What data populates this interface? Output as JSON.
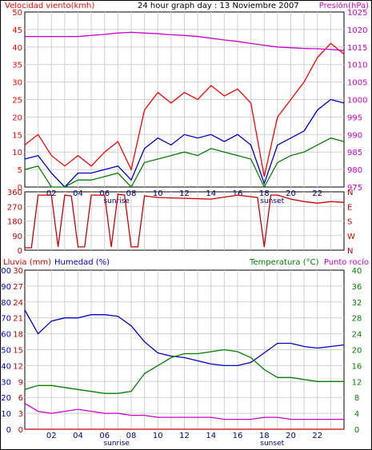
{
  "header": {
    "wind_label": "Velocidad viento(kmh)",
    "title": "24 hour graph day : 13 Noviembre 2007",
    "pressure_label": "Presión(hPa)"
  },
  "bottom_header": {
    "rain_label": "Lluvia (mm)",
    "humidity_label": "Humedad (%)",
    "temp_label": "Temperatura (°C)",
    "dew_label": "Punto rocío"
  },
  "x_tick_labels": [
    "02",
    "04",
    "06",
    "08",
    "10",
    "12",
    "14",
    "16",
    "18",
    "20",
    "22"
  ],
  "sun_labels": {
    "sunrise": "sunrise",
    "sunset": "sunset"
  },
  "colors": {
    "wind": "#ff0000",
    "wind_avg": "#0000cc",
    "wind_min": "#008000",
    "pressure": "#cc00cc",
    "direction": "#cc0000",
    "humidity": "#0000cc",
    "temperature": "#008000",
    "dewpoint": "#cc00cc",
    "rain": "#cc0000",
    "grid": "#d0d0d0"
  },
  "chart_data": [
    {
      "type": "line",
      "title": "24 hour graph day : 13 Noviembre 2007",
      "x_hours": [
        0,
        1,
        2,
        3,
        4,
        5,
        6,
        7,
        8,
        9,
        10,
        11,
        12,
        13,
        14,
        15,
        16,
        17,
        18,
        19,
        20,
        21,
        22,
        23,
        24
      ],
      "xlim": [
        0,
        24
      ],
      "left_axis": {
        "label": "Velocidad viento(kmh)",
        "ylim": [
          0,
          50
        ],
        "ticks": [
          0,
          5,
          10,
          15,
          20,
          25,
          30,
          35,
          40,
          45,
          50
        ]
      },
      "right_axis": {
        "label": "Presión(hPa)",
        "ylim": [
          975,
          1025
        ],
        "ticks": [
          975,
          980,
          985,
          990,
          995,
          1000,
          1005,
          1010,
          1015,
          1020,
          1025
        ]
      },
      "series": [
        {
          "axis": "left",
          "values": [
            12,
            15,
            9,
            6,
            9,
            6,
            10,
            13,
            5,
            22,
            27,
            24,
            27,
            25,
            29,
            26,
            28,
            24,
            3,
            20,
            25,
            30,
            37,
            41,
            38
          ]
        },
        {
          "axis": "left",
          "values": [
            8,
            9,
            4,
            0,
            4,
            4,
            5,
            6,
            2,
            11,
            14,
            12,
            15,
            14,
            15,
            13,
            15,
            12,
            1,
            12,
            14,
            16,
            22,
            25,
            24
          ]
        },
        {
          "axis": "left",
          "values": [
            5,
            6,
            0,
            0,
            2,
            2,
            3,
            4,
            0,
            7,
            8,
            9,
            10,
            9,
            11,
            10,
            9,
            8,
            0,
            7,
            9,
            10,
            12,
            14,
            13
          ]
        },
        {
          "axis": "right",
          "values": [
            1018,
            1018,
            1018,
            1018,
            1018,
            1018.3,
            1018.6,
            1019,
            1019.2,
            1019,
            1018.8,
            1018.5,
            1018.3,
            1018,
            1017.5,
            1017,
            1016.6,
            1016,
            1015.5,
            1015,
            1014.8,
            1014.6,
            1014.5,
            1014.3,
            1014
          ]
        }
      ]
    },
    {
      "type": "line",
      "x_hours": [
        0,
        0.5,
        1,
        1.5,
        2,
        2.5,
        3,
        3.5,
        4,
        4.5,
        5,
        5.5,
        6,
        6.5,
        7,
        7.5,
        8,
        8.5,
        9,
        10,
        12,
        14,
        16,
        17.5,
        18,
        18.5,
        19,
        20,
        21,
        22,
        23,
        24
      ],
      "xlim": [
        0,
        24
      ],
      "left_axis": {
        "ylim": [
          0,
          360
        ],
        "ticks": [
          0,
          90,
          180,
          270,
          360
        ]
      },
      "right_axis": {
        "ticks": [
          "N",
          "E",
          "S",
          "W",
          "N"
        ]
      },
      "series": [
        {
          "values": [
            15,
            15,
            340,
            340,
            340,
            20,
            340,
            335,
            20,
            20,
            340,
            340,
            340,
            20,
            345,
            340,
            20,
            20,
            335,
            325,
            320,
            315,
            340,
            325,
            20,
            340,
            340,
            315,
            300,
            290,
            300,
            295
          ]
        }
      ]
    },
    {
      "type": "line",
      "x_hours": [
        0,
        1,
        2,
        3,
        4,
        5,
        6,
        7,
        8,
        9,
        10,
        11,
        12,
        13,
        14,
        15,
        16,
        17,
        18,
        19,
        20,
        21,
        22,
        23,
        24
      ],
      "xlim": [
        0,
        24
      ],
      "left_axis": {
        "label": "Lluvia (mm)",
        "ylim": [
          0,
          30
        ],
        "ticks": [
          0,
          3,
          6,
          9,
          12,
          15,
          18,
          21,
          24,
          27,
          30
        ]
      },
      "left_axis_2": {
        "label": "Humedad (%)",
        "ylim": [
          0,
          100
        ],
        "ticks": [
          0,
          10,
          20,
          30,
          40,
          50,
          60,
          70,
          80,
          90,
          100
        ]
      },
      "right_axis": {
        "label": "Temperatura (°C)",
        "ylim": [
          0,
          40
        ],
        "ticks": [
          0,
          4,
          8,
          12,
          16,
          20,
          24,
          28,
          32,
          36,
          40
        ]
      },
      "series": [
        {
          "axis": "left_2",
          "values": [
            75,
            60,
            68,
            70,
            70,
            72,
            72,
            71,
            65,
            55,
            48,
            46,
            45,
            43,
            41,
            40,
            40,
            42,
            48,
            54,
            54,
            52,
            51,
            52,
            53
          ]
        },
        {
          "axis": "right",
          "values": [
            10,
            11,
            11,
            10.5,
            10,
            9.5,
            9,
            9,
            9.5,
            14,
            16,
            18,
            19,
            19,
            19.5,
            20,
            19.5,
            18,
            15,
            13,
            13,
            12.5,
            12,
            12,
            12
          ]
        },
        {
          "axis": "right",
          "values": [
            6.5,
            4.5,
            4,
            4.5,
            5,
            4.5,
            4,
            4,
            3.5,
            3.5,
            3,
            3,
            3,
            3,
            3,
            2.5,
            2.5,
            2.5,
            3,
            3,
            2.5,
            2.5,
            2.5,
            2.5,
            2.5
          ]
        },
        {
          "axis": "left",
          "values": [
            0,
            0,
            0,
            0,
            0,
            0,
            0,
            0,
            0,
            0,
            0,
            0,
            0,
            0,
            0,
            0,
            0,
            0,
            0,
            0,
            0,
            0,
            0,
            0,
            0
          ]
        }
      ]
    }
  ]
}
